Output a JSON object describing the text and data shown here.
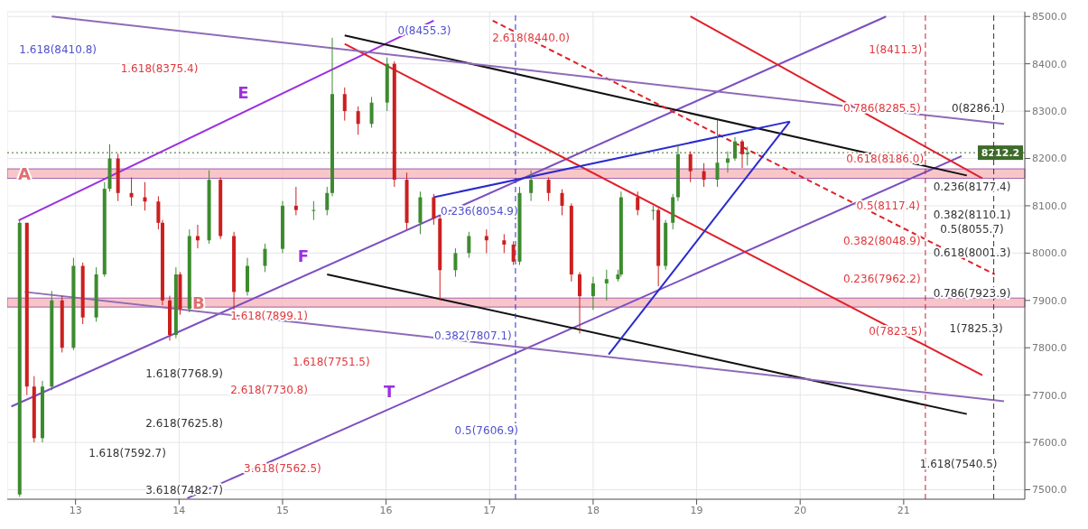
{
  "chart_data": {
    "type": "candlestick",
    "x": [
      12.46,
      12.53,
      12.6,
      12.68,
      12.77,
      12.87,
      12.98,
      13.07,
      13.2,
      13.28,
      13.33,
      13.41,
      13.54,
      13.67,
      13.8,
      13.84,
      13.91,
      13.97,
      14.01,
      14.1,
      14.18,
      14.29,
      14.4,
      14.53,
      14.66,
      14.83,
      15,
      15.13,
      15.3,
      15.43,
      15.48,
      15.6,
      15.73,
      15.86,
      16.01,
      16.08,
      16.2,
      16.33,
      16.46,
      16.52,
      16.67,
      16.8,
      16.97,
      17.14,
      17.23,
      17.29,
      17.4,
      17.57,
      17.7,
      17.79,
      17.87,
      18,
      18.13,
      18.24,
      18.27,
      18.43,
      18.58,
      18.63,
      18.7,
      18.77,
      18.82,
      18.94,
      19.07,
      19.2,
      19.3,
      19.37,
      19.44,
      19.49
    ],
    "ohlc": [
      [
        7490,
        8070,
        7485,
        8064
      ],
      [
        8064,
        8064,
        7700,
        7718
      ],
      [
        7718,
        7740,
        7600,
        7609
      ],
      [
        7609,
        7730,
        7600,
        7718
      ],
      [
        7718,
        7920,
        7710,
        7900
      ],
      [
        7900,
        7910,
        7790,
        7800
      ],
      [
        7800,
        7990,
        7795,
        7973
      ],
      [
        7973,
        7980,
        7850,
        7864
      ],
      [
        7864,
        7970,
        7855,
        7955
      ],
      [
        7955,
        8150,
        7950,
        8136
      ],
      [
        8136,
        8230,
        8130,
        8200
      ],
      [
        8200,
        8210,
        8110,
        8127
      ],
      [
        8127,
        8160,
        8100,
        8118
      ],
      [
        8118,
        8150,
        8090,
        8109
      ],
      [
        8109,
        8120,
        8050,
        8064
      ],
      [
        8064,
        8070,
        7890,
        7900
      ],
      [
        7900,
        7910,
        7815,
        7827
      ],
      [
        7827,
        7970,
        7820,
        7955
      ],
      [
        7955,
        7960,
        7870,
        7882
      ],
      [
        7882,
        8050,
        7875,
        8036
      ],
      [
        8036,
        8060,
        8010,
        8027
      ],
      [
        8027,
        8175,
        8020,
        8155
      ],
      [
        8155,
        8160,
        8030,
        8036
      ],
      [
        8036,
        8045,
        7880,
        7918
      ],
      [
        7918,
        7990,
        7910,
        7973
      ],
      [
        7973,
        8020,
        7960,
        8009
      ],
      [
        8009,
        8110,
        8000,
        8100
      ],
      [
        8100,
        8140,
        8080,
        8091
      ],
      [
        8091,
        8110,
        8070,
        8091
      ],
      [
        8091,
        8140,
        8080,
        8127
      ],
      [
        8127,
        8455,
        8120,
        8336
      ],
      [
        8336,
        8350,
        8280,
        8300
      ],
      [
        8300,
        8310,
        8250,
        8273
      ],
      [
        8273,
        8330,
        8265,
        8318
      ],
      [
        8318,
        8413,
        8300,
        8400
      ],
      [
        8400,
        8405,
        8140,
        8155
      ],
      [
        8155,
        8170,
        8050,
        8064
      ],
      [
        8064,
        8130,
        8040,
        8118
      ],
      [
        8118,
        8125,
        8060,
        8073
      ],
      [
        8073,
        8080,
        7900,
        7964
      ],
      [
        7964,
        8010,
        7950,
        8000
      ],
      [
        8000,
        8045,
        7990,
        8036
      ],
      [
        8036,
        8050,
        8000,
        8027
      ],
      [
        8027,
        8040,
        8000,
        8018
      ],
      [
        8018,
        8025,
        7975,
        7982
      ],
      [
        7982,
        8140,
        7975,
        8127
      ],
      [
        8127,
        8175,
        8110,
        8155
      ],
      [
        8155,
        8160,
        8110,
        8127
      ],
      [
        8127,
        8135,
        8080,
        8100
      ],
      [
        8100,
        8105,
        7940,
        7955
      ],
      [
        7955,
        7960,
        7830,
        7909
      ],
      [
        7909,
        7950,
        7880,
        7936
      ],
      [
        7936,
        7965,
        7900,
        7945
      ],
      [
        7945,
        7965,
        7940,
        7955
      ],
      [
        7955,
        8130,
        7950,
        8118
      ],
      [
        8118,
        8130,
        8080,
        8091
      ],
      [
        8091,
        8100,
        8070,
        8091
      ],
      [
        8091,
        8095,
        7930,
        7973
      ],
      [
        7973,
        8070,
        7965,
        8064
      ],
      [
        8064,
        8125,
        8050,
        8118
      ],
      [
        8118,
        8230,
        8110,
        8209
      ],
      [
        8209,
        8215,
        8150,
        8173
      ],
      [
        8173,
        8190,
        8140,
        8155
      ],
      [
        8155,
        8282,
        8140,
        8191
      ],
      [
        8191,
        8215,
        8170,
        8200
      ],
      [
        8200,
        8245,
        8195,
        8236
      ],
      [
        8236,
        8240,
        8180,
        8209
      ],
      [
        8209,
        8225,
        8185,
        8212
      ]
    ],
    "series": [
      {
        "type": "line",
        "x": [
          12.45,
          16.46
        ],
        "values": [
          8069,
          8491
        ],
        "color": "#9b30e0"
      },
      {
        "type": "line",
        "x": [
          12.38,
          20.83
        ],
        "values": [
          7676,
          8500
        ],
        "color": "#7b4fc0"
      },
      {
        "type": "line",
        "x": [
          14.08,
          21.56
        ],
        "values": [
          7482,
          8205
        ],
        "color": "#7b4fc0"
      },
      {
        "type": "line",
        "x": [
          15.6,
          21.61
        ],
        "values": [
          8460,
          8164
        ],
        "color": "#111111"
      },
      {
        "type": "line",
        "x": [
          15.43,
          21.61
        ],
        "values": [
          7955,
          7660
        ],
        "color": "#111111"
      },
      {
        "type": "line",
        "x": [
          15.6,
          21.76
        ],
        "values": [
          8442,
          7742
        ],
        "color": "#e0202a"
      },
      {
        "type": "line",
        "x": [
          18.94,
          21.76
        ],
        "values": [
          8500,
          8158
        ],
        "color": "#e0202a"
      },
      {
        "type": "line",
        "x": [
          17.03,
          21.88
        ],
        "values": [
          8491,
          7955
        ],
        "color": "#e0202a",
        "line_style": "dashed"
      },
      {
        "type": "line",
        "x": [
          16.46,
          19.9
        ],
        "values": [
          8118,
          8278
        ],
        "color": "#2a2ad0"
      },
      {
        "type": "line",
        "x": [
          18.15,
          19.9
        ],
        "values": [
          7786,
          8278
        ],
        "color": "#2a2ad0"
      },
      {
        "type": "line",
        "x": [
          12.51,
          21.97
        ],
        "values": [
          7918,
          7687
        ],
        "color": "#8e6bb8"
      },
      {
        "type": "line",
        "x": [
          12.77,
          21.97
        ],
        "values": [
          8500,
          8273
        ],
        "color": "#8e6bb8"
      }
    ],
    "xlim": [
      12.34,
      22.17
    ],
    "xticks": [
      13,
      14,
      15,
      16,
      17,
      18,
      19,
      20,
      21
    ],
    "ylim": [
      7480,
      8510
    ],
    "yticks": [
      {
        "value": 7500,
        "label": "7500.0"
      },
      {
        "value": 7600,
        "label": "7600.0"
      },
      {
        "value": 7700,
        "label": "7700.0"
      },
      {
        "value": 7800,
        "label": "7800.0"
      },
      {
        "value": 7900,
        "label": "7900.0"
      },
      {
        "value": 8000,
        "label": "8000.0"
      },
      {
        "value": 8100,
        "label": "8100.0"
      },
      {
        "value": 8200,
        "label": "8200.0"
      },
      {
        "value": 8300,
        "label": "8300.0"
      },
      {
        "value": 8400,
        "label": "8400.0"
      },
      {
        "value": 8500,
        "label": "8500.0"
      }
    ],
    "grid": true,
    "bands": [
      {
        "axis": "y",
        "from": 8158,
        "to": 8178,
        "label": "A",
        "color": "#f6b8bc"
      },
      {
        "axis": "y",
        "from": 7886,
        "to": 7905,
        "label": "B",
        "color": "#f6b8bc"
      }
    ],
    "ref_lines": [
      {
        "axis": "y",
        "value": 8212.2,
        "label": "8212.2",
        "color": "#3d6b2a",
        "line_style": "dotted"
      },
      {
        "axis": "x",
        "value": 17.25,
        "label": null,
        "color": "#2a2ad0",
        "line_style": "dashed"
      },
      {
        "axis": "x",
        "value": 21.21,
        "label": null,
        "color": "#c0203a",
        "line_style": "dashed"
      },
      {
        "axis": "x",
        "value": 21.87,
        "label": null,
        "color": "#333333",
        "line_style": "dashed"
      }
    ],
    "annotations": [
      "1.618(8410.8)",
      "1.618(8375.4)",
      "0(8455.3)",
      "2.618(8440.0)",
      "1(8411.3)",
      "0.786(8285.5)",
      "0(8286.1)",
      "0.618(8186.0)",
      "0.236(8177.4)",
      "0.5(8117.4)",
      "0.382(8110.1)",
      "0.382(8048.9)",
      "0.5(8055.7)",
      "0.618(8001.3)",
      "0.236(7962.2)",
      "0.786(7923.9)",
      "0(7823.5)",
      "1(7825.3)",
      "1.618(7540.5)",
      "0.236(8054.9)",
      "1.618(7899.1)",
      "0.382(7807.1)",
      "1.618(7768.9)",
      "1.618(7751.5)",
      "2.618(7730.8)",
      "2.618(7625.8)",
      "1.618(7592.7)",
      "3.618(7562.5)",
      "0.5(7606.9)",
      "3.618(7482.7)",
      "E",
      "F",
      "T"
    ]
  }
}
